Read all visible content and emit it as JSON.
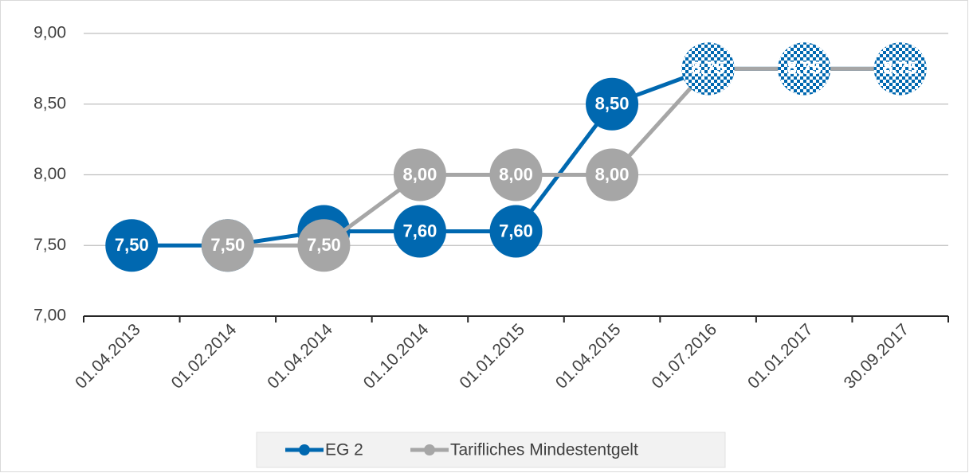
{
  "chart_data": {
    "type": "line",
    "categories": [
      "01.04.2013",
      "01.02.2014",
      "01.04.2014",
      "01.10.2014",
      "01.01.2015",
      "01.04.2015",
      "01.07.2016",
      "01.01.2017",
      "30.09.2017"
    ],
    "series": [
      {
        "name": "EG 2",
        "color": "#0068b0",
        "values": [
          7.5,
          7.5,
          7.6,
          7.6,
          7.6,
          8.5,
          8.75,
          8.75,
          8.75
        ],
        "value_labels": [
          "7,50",
          "7,50",
          "7,60",
          "7,60",
          "7,60",
          "8,50",
          "8,75",
          "8,75",
          "8,75"
        ]
      },
      {
        "name": "Tarifliches Mindestentgelt",
        "color": "#a6a6a6",
        "values": [
          null,
          7.5,
          7.5,
          8.0,
          8.0,
          8.0,
          8.75,
          8.75,
          8.75
        ],
        "value_labels": [
          null,
          "7,50",
          "7,50",
          "8,00",
          "8,00",
          "8,00",
          "8,75",
          "8,75",
          "8,75"
        ]
      }
    ],
    "ylim": [
      7,
      9
    ],
    "yticks": [
      {
        "value": 7,
        "label": "7,00"
      },
      {
        "value": 7.5,
        "label": "7,50"
      },
      {
        "value": 8,
        "label": "8,00"
      },
      {
        "value": 8.5,
        "label": "8,50"
      },
      {
        "value": 9,
        "label": "9,00"
      }
    ],
    "grid": true,
    "legend": "bottom"
  }
}
